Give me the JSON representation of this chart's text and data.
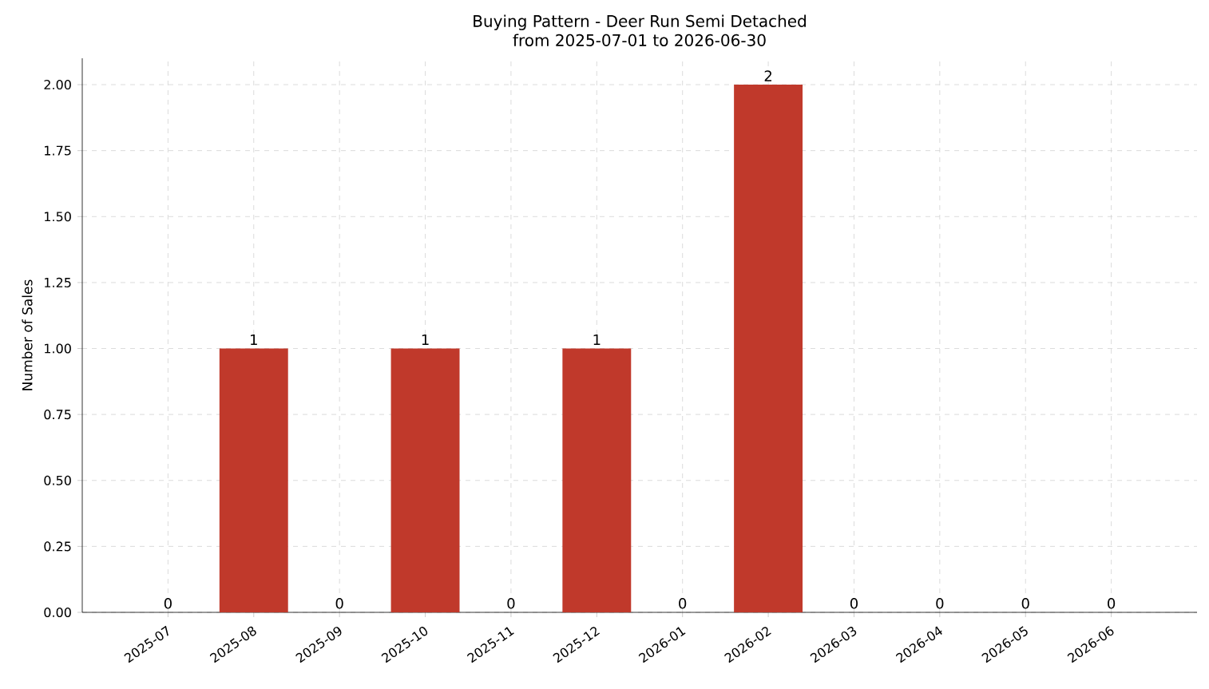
{
  "chart_data": {
    "type": "bar",
    "title": "Buying Pattern - Deer Run Semi Detached",
    "subtitle": "from 2025-07-01 to 2026-06-30",
    "ylabel": "Number of Sales",
    "categories": [
      "2025-07",
      "2025-08",
      "2025-09",
      "2025-10",
      "2025-11",
      "2025-12",
      "2026-01",
      "2026-02",
      "2026-03",
      "2026-04",
      "2026-05",
      "2026-06"
    ],
    "values": [
      0,
      1,
      0,
      1,
      0,
      1,
      0,
      2,
      0,
      0,
      0,
      0
    ],
    "color": "#c0392b",
    "data_labels": true,
    "grid": true,
    "ylim": [
      0,
      2.1
    ],
    "yticks": [
      {
        "value": 0,
        "label": "0.00"
      },
      {
        "value": 0.25,
        "label": "0.25"
      },
      {
        "value": 0.5,
        "label": "0.50"
      },
      {
        "value": 0.75,
        "label": "0.75"
      },
      {
        "value": 1,
        "label": "1.00"
      },
      {
        "value": 1.25,
        "label": "1.25"
      },
      {
        "value": 1.5,
        "label": "1.50"
      },
      {
        "value": 1.75,
        "label": "1.75"
      },
      {
        "value": 2,
        "label": "2.00"
      }
    ]
  }
}
